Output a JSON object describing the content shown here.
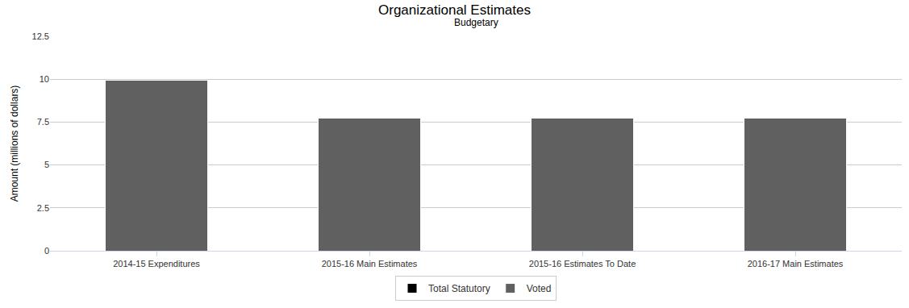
{
  "chart_data": {
    "type": "bar",
    "title": "Organizational Estimates",
    "subtitle": "Budgetary",
    "y_label": "Amount (millions of dollars)",
    "categories": [
      "2014-15 Expenditures",
      "2015-16 Main Estimates",
      "2015-16 Estimates To Date",
      "2016-17 Main Estimates"
    ],
    "series": [
      {
        "name": "Total Statutory",
        "color": "#000000",
        "values": [
          0,
          0,
          0,
          0
        ]
      },
      {
        "name": "Voted",
        "color": "#606060",
        "values": [
          9.95,
          7.72,
          7.72,
          7.72
        ]
      }
    ],
    "stacked": true,
    "ylim": [
      0,
      12.5
    ],
    "yticks": [
      0,
      2.5,
      5,
      7.5,
      10,
      12.5
    ],
    "grid": true,
    "legend": "bottom"
  }
}
